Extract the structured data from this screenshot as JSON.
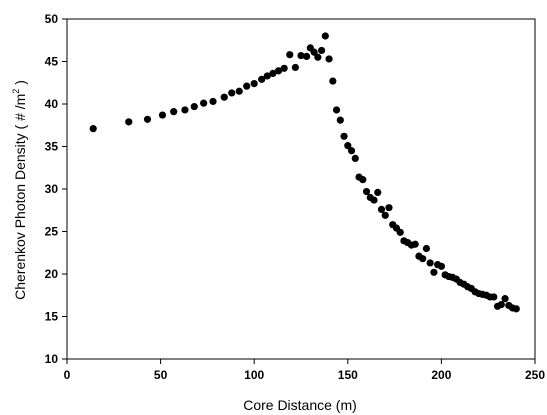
{
  "chart_data": {
    "type": "scatter",
    "title": "",
    "xlabel": "Core Distance (m)",
    "ylabel_main": "Cherenkov Photon Density ( # /m",
    "ylabel_sup": "2",
    "ylabel_end": " )",
    "xlim": [
      0,
      250
    ],
    "ylim": [
      10,
      50
    ],
    "xticks": [
      0,
      50,
      100,
      150,
      200,
      250
    ],
    "yticks": [
      10,
      15,
      20,
      25,
      30,
      35,
      40,
      45,
      50
    ],
    "grid": false,
    "marker_color": "#000000",
    "series": [
      {
        "x": [
          14,
          33,
          43,
          51,
          57,
          63,
          68,
          73,
          78,
          84,
          88,
          92,
          96,
          100,
          104,
          107,
          110,
          113,
          116,
          119,
          122,
          125,
          128,
          130,
          132,
          134,
          136,
          138,
          140,
          142,
          144,
          146,
          148,
          150,
          152,
          154,
          156,
          158,
          160,
          162,
          164,
          166,
          168,
          170,
          172,
          174,
          176,
          178,
          180,
          182,
          184,
          186,
          188,
          190,
          192,
          194,
          196,
          198,
          200,
          202,
          204,
          206,
          208,
          210,
          212,
          214,
          216,
          218,
          220,
          222,
          224,
          226,
          228,
          230,
          232,
          234,
          236,
          238,
          240
        ],
        "y": [
          37.1,
          37.9,
          38.2,
          38.7,
          39.1,
          39.3,
          39.7,
          40.1,
          40.3,
          40.8,
          41.3,
          41.5,
          42.1,
          42.4,
          42.9,
          43.3,
          43.6,
          43.9,
          44.2,
          45.8,
          44.3,
          45.7,
          45.6,
          46.6,
          46.1,
          45.5,
          46.3,
          48.0,
          45.3,
          42.7,
          39.3,
          38.1,
          36.2,
          35.1,
          34.5,
          33.6,
          31.4,
          31.1,
          29.7,
          29.0,
          28.7,
          29.6,
          27.6,
          26.9,
          27.8,
          25.8,
          25.4,
          24.9,
          23.9,
          23.7,
          23.4,
          23.5,
          22.1,
          21.8,
          23.0,
          21.3,
          20.2,
          21.1,
          20.9,
          19.9,
          19.7,
          19.6,
          19.4,
          19.0,
          18.8,
          18.5,
          18.3,
          17.9,
          17.7,
          17.6,
          17.5,
          17.3,
          17.3,
          16.2,
          16.4,
          17.1,
          16.3,
          16.0,
          15.9
        ]
      }
    ]
  }
}
